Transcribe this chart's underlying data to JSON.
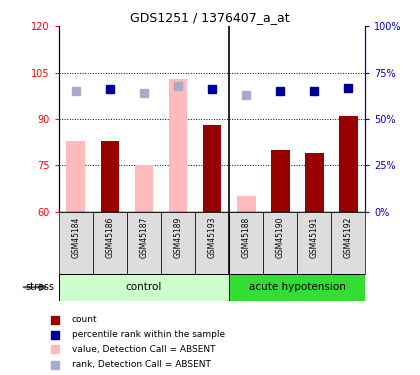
{
  "title": "GDS1251 / 1376407_a_at",
  "samples": [
    "GSM45184",
    "GSM45186",
    "GSM45187",
    "GSM45189",
    "GSM45193",
    "GSM45188",
    "GSM45190",
    "GSM45191",
    "GSM45192"
  ],
  "bar_values_red": [
    null,
    83,
    null,
    null,
    88,
    null,
    80,
    79,
    91
  ],
  "bar_values_pink": [
    83,
    null,
    75,
    103,
    null,
    65,
    null,
    null,
    null
  ],
  "rank_blue": [
    null,
    66,
    null,
    null,
    66,
    null,
    65,
    65,
    67
  ],
  "rank_lightblue": [
    65,
    null,
    64,
    68,
    null,
    63,
    null,
    null,
    null
  ],
  "ylim_left": [
    60,
    120
  ],
  "ylim_right": [
    0,
    100
  ],
  "yticks_left": [
    60,
    75,
    90,
    105,
    120
  ],
  "ytick_labels_left": [
    "60",
    "75",
    "90",
    "105",
    "120"
  ],
  "yticks_right": [
    0,
    25,
    50,
    75,
    100
  ],
  "ytick_labels_right": [
    "0%",
    "25%",
    "50%",
    "75%",
    "100%"
  ],
  "hlines": [
    75,
    90,
    105
  ],
  "color_red": "#990000",
  "color_pink": "#FFBBBB",
  "color_blue": "#000099",
  "color_lightblue": "#AAAACC",
  "color_ctrl_light": "#CCFFCC",
  "color_ctrl_dark": "#33DD33",
  "bar_width": 0.55,
  "figsize": [
    4.2,
    3.75
  ],
  "dpi": 100
}
